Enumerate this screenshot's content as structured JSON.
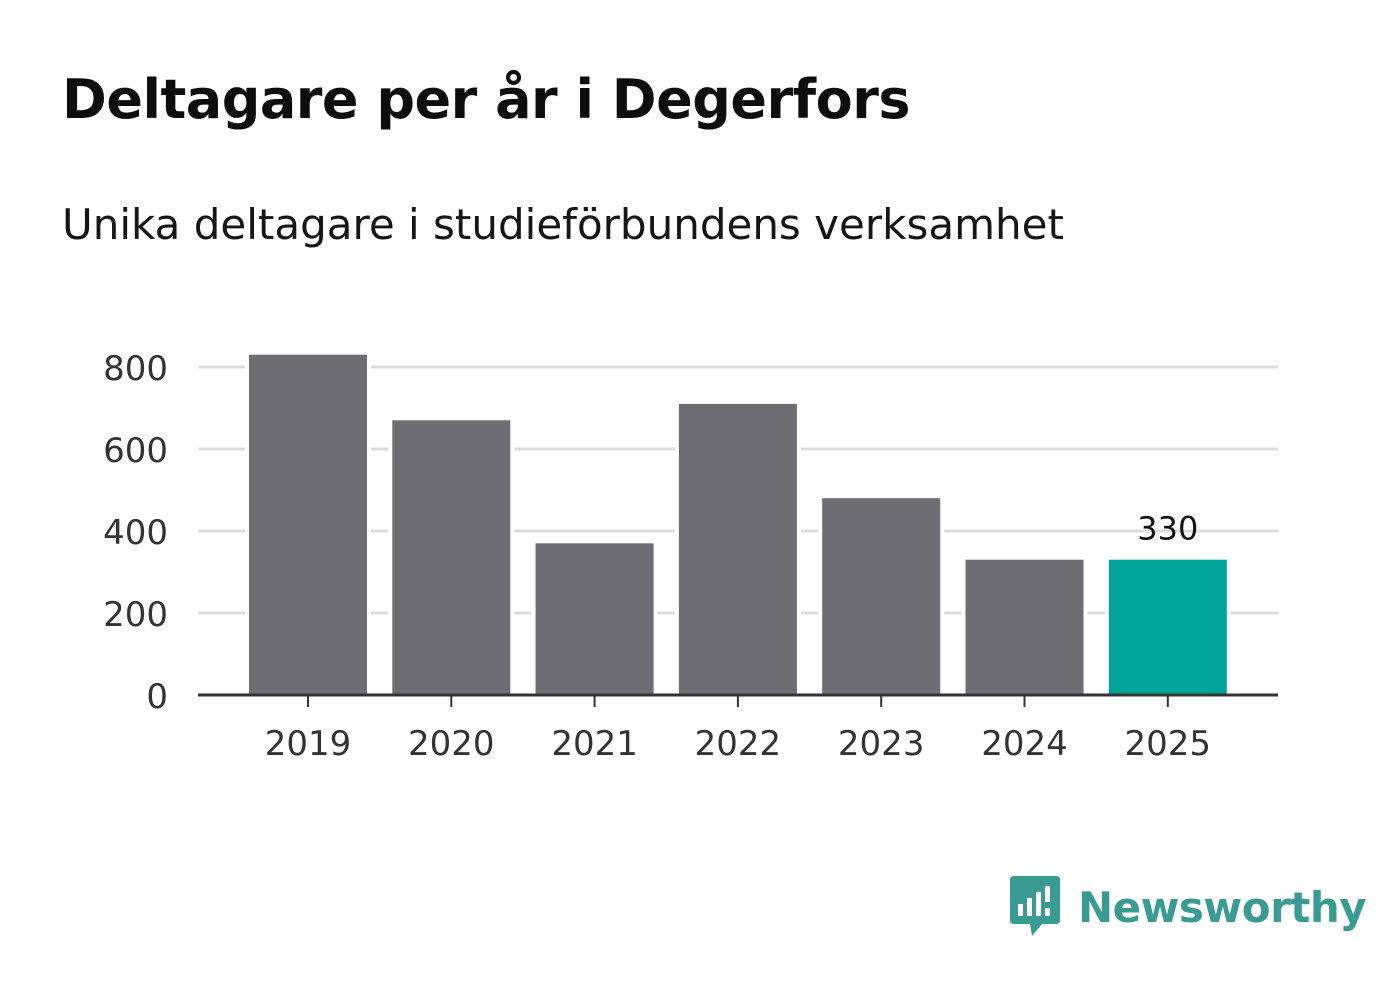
{
  "header": {
    "title": "Deltagare per år i Degerfors",
    "subtitle": "Unika deltagare i studieförbundens verksamhet"
  },
  "brand": {
    "name": "Newsworthy",
    "logo_icon": "bar-chart-speech-bubble-icon",
    "color": "#3a9b93"
  },
  "chart_data": {
    "type": "bar",
    "categories": [
      "2019",
      "2020",
      "2021",
      "2022",
      "2023",
      "2024",
      "2025"
    ],
    "values": [
      830,
      670,
      370,
      710,
      480,
      330,
      330
    ],
    "highlight_index": 6,
    "highlight_label": "330",
    "ylim": [
      0,
      800
    ],
    "yticks": [
      0,
      200,
      400,
      600,
      800
    ],
    "grid": true,
    "colors": {
      "bar": "#6e6d73",
      "highlight": "#00a598",
      "grid": "#dddddd",
      "axis": "#333333"
    }
  }
}
